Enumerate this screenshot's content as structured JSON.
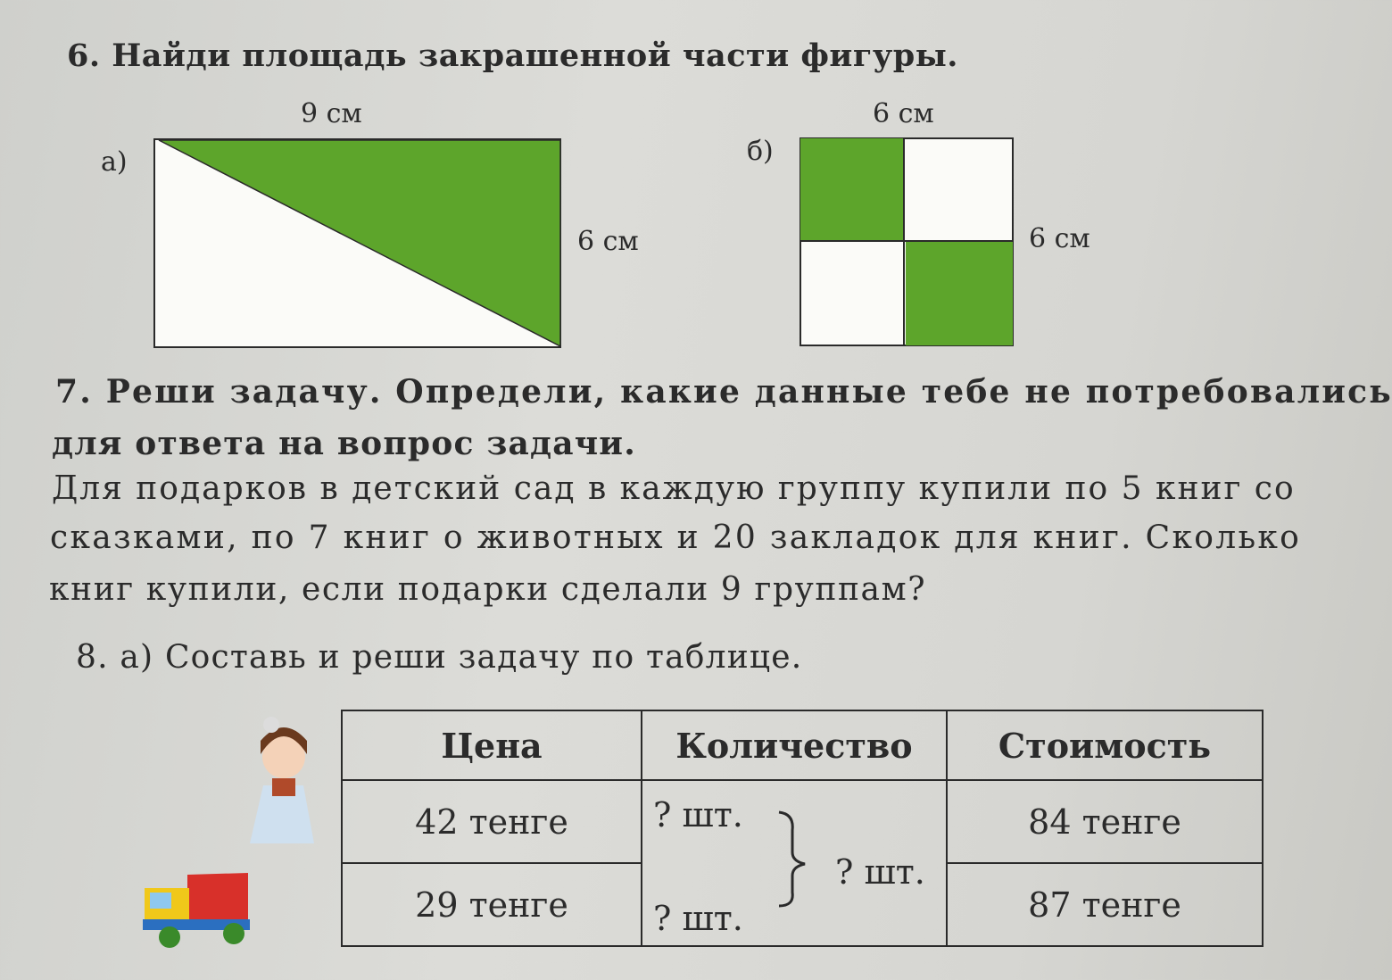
{
  "task6": {
    "title": "6. Найди площадь закрашенной части фигуры.",
    "figure_a": {
      "label": "а)",
      "width_label": "9 см",
      "height_label": "6 см"
    },
    "figure_b": {
      "label": "б)",
      "width_label": "6 см",
      "height_label": "6 см"
    },
    "fill_color": "#5da52b"
  },
  "task7": {
    "title_line1": "7. Реши задачу. Определи, какие данные тебе не потребовались",
    "title_line2": "для ответа на вопрос задачи.",
    "body_line1": "Для подарков в детский сад в каждую группу купили по 5 книг со",
    "body_line2": "сказками, по 7 книг о животных и 20 закладок для книг. Сколько",
    "body_line3": "книг купили, если подарки сделали 9 группам?"
  },
  "task8": {
    "title": "8. а) Составь и реши задачу по таблице.",
    "table": {
      "headers": [
        "Цена",
        "Количество",
        "Стоимость"
      ],
      "rows": [
        {
          "price": "42 тенге",
          "qty": "? шт.",
          "cost": "84 тенге"
        },
        {
          "price": "29 тенге",
          "qty": "? шт.",
          "cost": "87 тенге"
        }
      ],
      "total_qty": "? шт."
    }
  }
}
